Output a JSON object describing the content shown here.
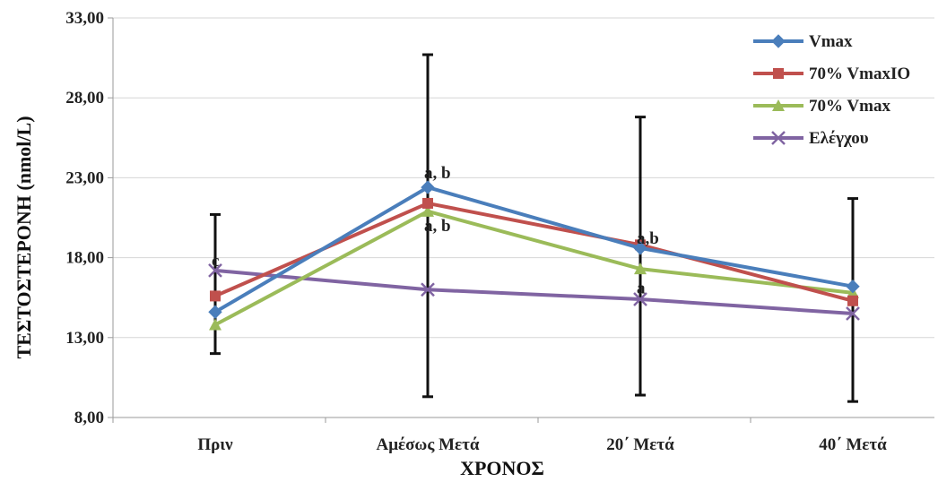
{
  "chart_data": {
    "type": "line",
    "xlabel": "ΧΡΟΝΟΣ",
    "ylabel": "ΤΕΣΤΟΣΤΕΡΟΝΗ (nmol/L)",
    "ylim": [
      8,
      33
    ],
    "y_ticks": [
      8,
      13,
      18,
      23,
      28,
      33
    ],
    "y_tick_labels": [
      "8,00",
      "13,00",
      "18,00",
      "23,00",
      "28,00",
      "33,00"
    ],
    "grid": "horizontal",
    "legend_position": "top-right",
    "categories": [
      "Πριν",
      "Αμέσως Μετά",
      "20΄ Μετά",
      "40΄ Μετά"
    ],
    "series": [
      {
        "name": "Vmax",
        "color": "#4a7ebb",
        "marker": "diamond",
        "values": [
          14.6,
          22.4,
          18.6,
          16.2
        ]
      },
      {
        "name": "70% VmaxIO",
        "color": "#c0504d",
        "marker": "square",
        "values": [
          15.6,
          21.4,
          18.8,
          15.3
        ]
      },
      {
        "name": "70% Vmax",
        "color": "#9bbb59",
        "marker": "triangle",
        "values": [
          13.8,
          20.9,
          17.3,
          15.8
        ]
      },
      {
        "name": "Ελέγχου",
        "color": "#8064a2",
        "marker": "x",
        "values": [
          17.2,
          16.0,
          15.4,
          14.5
        ]
      }
    ],
    "error_bars": [
      {
        "category": "Πριν",
        "low": 12.0,
        "high": 20.7
      },
      {
        "category": "Αμέσως Μετά",
        "low": 9.3,
        "high": 30.7
      },
      {
        "category": "20΄ Μετά",
        "low": 9.4,
        "high": 26.8
      },
      {
        "category": "40΄ Μετά",
        "low": 9.0,
        "high": 21.7
      }
    ],
    "annotations": [
      {
        "text": "c",
        "category": "Πριν",
        "y": 17.8
      },
      {
        "text": "a, b",
        "category": "Αμέσως Μετά",
        "y": 23.3
      },
      {
        "text": "a, b",
        "category": "Αμέσως Μετά",
        "y": 20.0
      },
      {
        "text": "a,b",
        "category": "20΄ Μετά",
        "y": 19.2
      },
      {
        "text": "a",
        "category": "20΄ Μετά",
        "y": 16.1
      }
    ]
  }
}
